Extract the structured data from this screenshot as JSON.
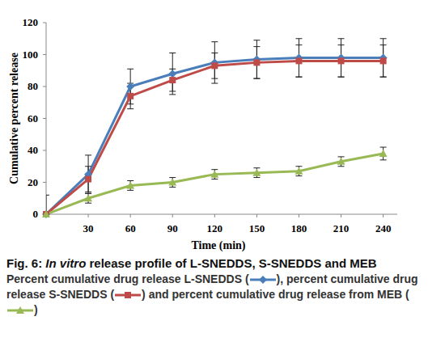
{
  "chart_data": {
    "type": "line",
    "x_label": "Time (min)",
    "y_label": "Cumulative percent release",
    "x": [
      0,
      30,
      60,
      90,
      120,
      150,
      180,
      210,
      240
    ],
    "xlim": [
      0,
      250
    ],
    "xticks": [
      30,
      60,
      90,
      120,
      150,
      180,
      210,
      240
    ],
    "ylim": [
      0,
      120
    ],
    "yticks": [
      0,
      20,
      40,
      60,
      80,
      100,
      120
    ],
    "grid": false,
    "series": [
      {
        "name": "L-SNEDDS",
        "color": "#4a7ebb",
        "marker": "diamond",
        "values": [
          0,
          25,
          80,
          88,
          95,
          97,
          98,
          98,
          98
        ],
        "errors": [
          12,
          12,
          11,
          13,
          13,
          12,
          12,
          12,
          12
        ]
      },
      {
        "name": "S-SNEDDS",
        "color": "#be4b48",
        "marker": "square",
        "values": [
          0,
          22,
          74,
          84,
          93,
          95,
          96,
          96,
          96
        ],
        "errors": [
          0,
          8,
          8,
          7,
          8,
          10,
          10,
          10,
          10
        ]
      },
      {
        "name": "MEB",
        "color": "#98b954",
        "marker": "triangle",
        "values": [
          0,
          10,
          18,
          20,
          25,
          26,
          27,
          33,
          38
        ],
        "errors": [
          0,
          3,
          3,
          3,
          3,
          3,
          3,
          3,
          4
        ]
      }
    ],
    "caption": {
      "title_prefix": "Fig. 6: ",
      "title_italic": "In vitro",
      "title_rest": " release profile of L-SNEDDS, S-SNEDDS and MEB",
      "legend_prefixes": [
        "Percent cumulative drug release ",
        ", percent cumulative drug release ",
        " and percent cumulative drug release from "
      ],
      "legend_open": " (",
      "legend_close": ")"
    }
  }
}
